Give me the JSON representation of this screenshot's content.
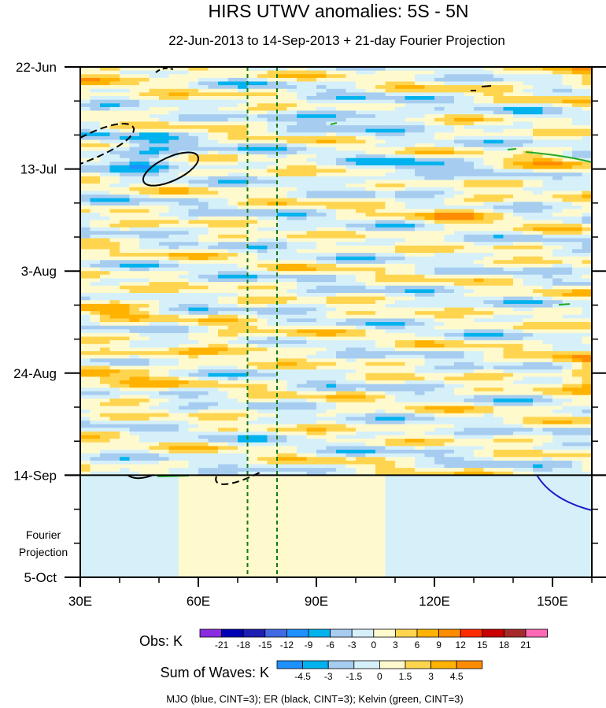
{
  "chart_data": {
    "type": "heatmap",
    "title": "HIRS UTWV anomalies: 5S - 5N",
    "subtitle": "22-Jun-2013 to 14-Sep-2013 + 21-day Fourier Projection",
    "x_axis": {
      "range": [
        30,
        160
      ],
      "ticks": [
        {
          "value": 30,
          "label": "30E"
        },
        {
          "value": 60,
          "label": "60E"
        },
        {
          "value": 90,
          "label": "90E"
        },
        {
          "value": 120,
          "label": "120E"
        },
        {
          "value": 150,
          "label": "150E"
        }
      ]
    },
    "y_axis": {
      "range_days": [
        0,
        105
      ],
      "ticks": [
        {
          "day": 0,
          "label": "22-Jun"
        },
        {
          "day": 21,
          "label": "13-Jul"
        },
        {
          "day": 42,
          "label": "3-Aug"
        },
        {
          "day": 63,
          "label": "24-Aug"
        },
        {
          "day": 84,
          "label": "14-Sep"
        },
        {
          "day": 105,
          "label": "5-Oct"
        }
      ],
      "projection_label": [
        "Fourier",
        "Projection"
      ],
      "projection_start_day": 84
    },
    "reference_lines_lon": [
      72.5,
      80
    ],
    "obs_colorbar": {
      "title": "Obs: K",
      "levels": [
        -21,
        -18,
        -15,
        -12,
        -9,
        -6,
        -3,
        0,
        3,
        6,
        9,
        12,
        15,
        18,
        21
      ],
      "colors": [
        "#8a2be2",
        "#0000b4",
        "#1e1eb4",
        "#4169e1",
        "#1e90ff",
        "#00b2ee",
        "#a6cdf0",
        "#d6f0fa",
        "#fffacd",
        "#ffd54f",
        "#ffb300",
        "#ff8c00",
        "#ff2b00",
        "#c80000",
        "#a52a2a",
        "#ff69b4"
      ]
    },
    "waves_colorbar": {
      "title": "Sum of Waves: K",
      "levels": [
        -4.5,
        -3,
        -1.5,
        0,
        1.5,
        3,
        4.5
      ],
      "colors": [
        "#1e90ff",
        "#00b2ee",
        "#a6cdf0",
        "#d6f0fa",
        "#fffacd",
        "#ffd54f",
        "#ffb300",
        "#ff8c00"
      ]
    },
    "footnote": "MJO (blue, CINT=3); ER (black, CINT=3); Kelvin (green, CINT=3)"
  }
}
